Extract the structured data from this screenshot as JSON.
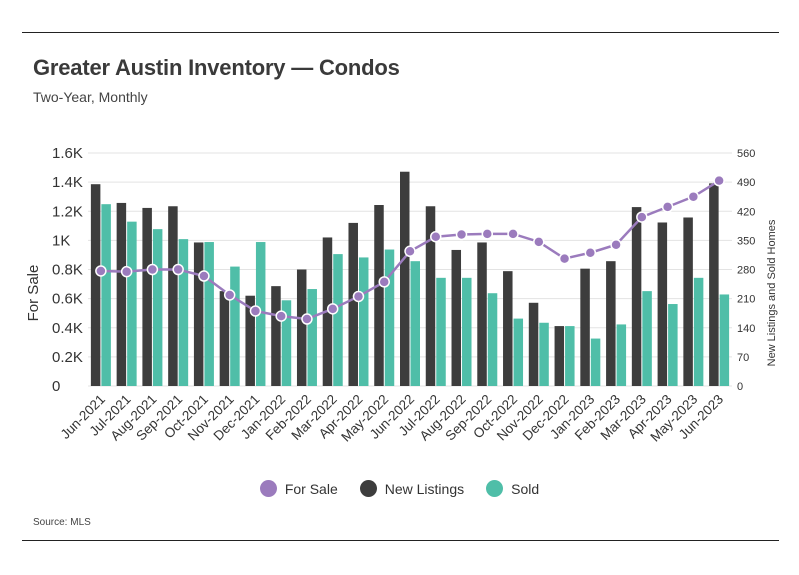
{
  "header": {
    "title": "Greater Austin Inventory — Condos",
    "subtitle": "Two-Year, Monthly"
  },
  "footer": {
    "source": "Source: MLS"
  },
  "colors": {
    "for_sale": "#9b7bbd",
    "new_listings": "#3d3d3d",
    "sold": "#4fbea8",
    "grid": "#e3e3e3"
  },
  "legend": [
    {
      "label": "For Sale",
      "color": "#9b7bbd"
    },
    {
      "label": "New Listings",
      "color": "#3d3d3d"
    },
    {
      "label": "Sold",
      "color": "#4fbea8"
    }
  ],
  "chart_data": {
    "type": "bar",
    "categories": [
      "Jun-2021",
      "Jul-2021",
      "Aug-2021",
      "Sep-2021",
      "Oct-2021",
      "Nov-2021",
      "Dec-2021",
      "Jan-2022",
      "Feb-2022",
      "Mar-2022",
      "Apr-2022",
      "May-2022",
      "Jun-2022",
      "Jul-2022",
      "Aug-2022",
      "Sep-2022",
      "Oct-2022",
      "Nov-2022",
      "Dec-2022",
      "Jan-2023",
      "Feb-2023",
      "Mar-2023",
      "Apr-2023",
      "May-2023",
      "Jun-2023"
    ],
    "y_left": {
      "label": "For Sale",
      "range": [
        0,
        1600
      ],
      "ticks": [
        0,
        200,
        400,
        600,
        800,
        1000,
        1200,
        1400,
        1600
      ],
      "tick_labels": [
        "0",
        "0.2K",
        "0.4K",
        "0.6K",
        "0.8K",
        "1K",
        "1.2K",
        "1.4K",
        "1.6K"
      ]
    },
    "y_right": {
      "label": "New Listings and Sold Homes",
      "range": [
        0,
        560
      ],
      "ticks": [
        0,
        70,
        140,
        210,
        280,
        350,
        420,
        490,
        560
      ],
      "tick_labels": [
        "0",
        "70",
        "140",
        "210",
        "280",
        "350",
        "420",
        "490",
        "560"
      ]
    },
    "grid": true,
    "legend_position": "bottom",
    "series": [
      {
        "name": "New Listings",
        "kind": "bar",
        "axis": "right",
        "values": [
          485,
          440,
          428,
          432,
          345,
          228,
          217,
          240,
          280,
          357,
          392,
          435,
          515,
          432,
          327,
          345,
          276,
          200,
          144,
          282,
          300,
          430,
          393,
          405,
          487
        ]
      },
      {
        "name": "Sold",
        "kind": "bar",
        "axis": "right",
        "values": [
          437,
          395,
          377,
          353,
          346,
          287,
          346,
          206,
          233,
          317,
          309,
          328,
          300,
          260,
          260,
          223,
          162,
          152,
          144,
          114,
          148,
          228,
          197,
          260,
          220
        ]
      },
      {
        "name": "For Sale",
        "kind": "line",
        "axis": "left",
        "values": [
          790,
          785,
          800,
          800,
          755,
          625,
          515,
          480,
          460,
          530,
          615,
          715,
          925,
          1025,
          1040,
          1045,
          1045,
          990,
          875,
          915,
          970,
          1160,
          1230,
          1300,
          1410
        ]
      }
    ]
  }
}
